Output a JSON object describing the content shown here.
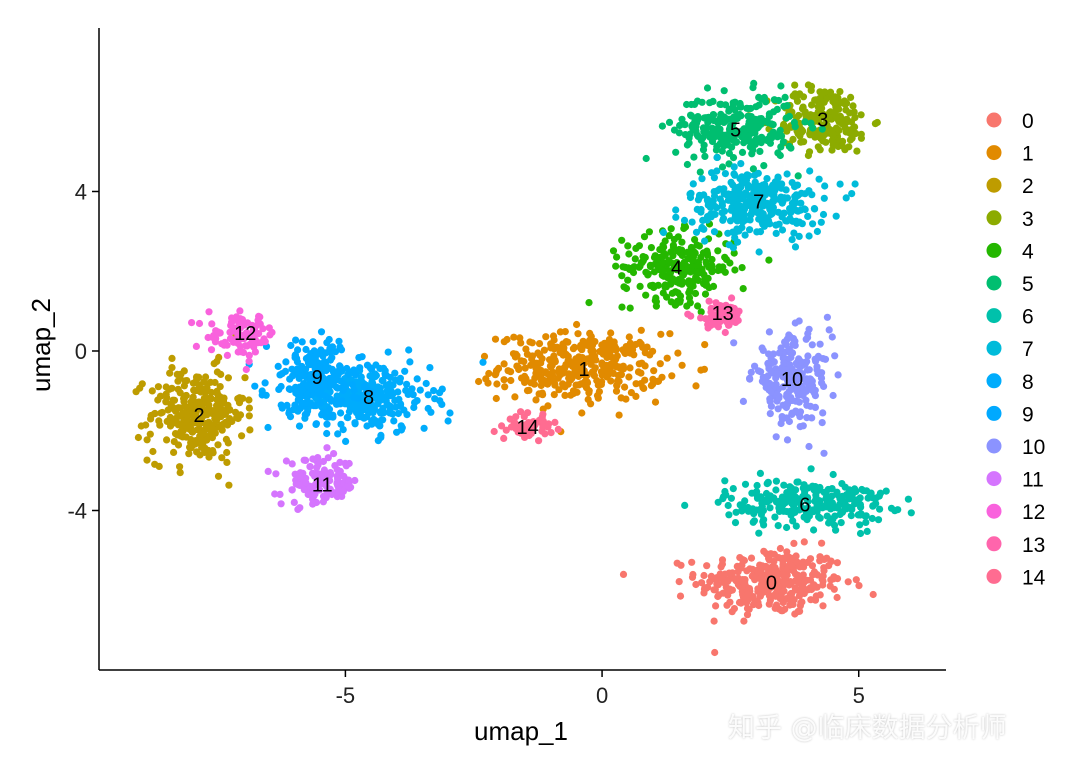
{
  "chart_data": {
    "type": "scatter",
    "title": "",
    "xlabel": "umap_1",
    "ylabel": "umap_2",
    "xlim": [
      -9.8,
      6.7
    ],
    "ylim": [
      -8.0,
      8.1
    ],
    "x_ticks": [
      -5,
      0,
      5
    ],
    "y_ticks": [
      -4,
      0,
      4
    ],
    "x_tick_labels": [
      "-5",
      "0",
      "5"
    ],
    "y_tick_labels": [
      "-4",
      "0",
      "4"
    ],
    "grid": false,
    "legend_position": "right",
    "clusters": [
      {
        "name": "0",
        "label": "0",
        "color": "#F8766D",
        "center": [
          3.3,
          -5.8
        ],
        "spread": [
          1.7,
          1.0
        ]
      },
      {
        "name": "1",
        "label": "1",
        "color": "#E18A00",
        "center": [
          -0.4,
          -0.4
        ],
        "spread": [
          1.9,
          1.0
        ]
      },
      {
        "name": "2",
        "label": "2",
        "color": "#BE9C00",
        "center": [
          -7.9,
          -1.6
        ],
        "spread": [
          1.1,
          1.4
        ]
      },
      {
        "name": "3",
        "label": "3",
        "color": "#8CAB00",
        "center": [
          4.3,
          5.8
        ],
        "spread": [
          1.1,
          1.0
        ]
      },
      {
        "name": "4",
        "label": "4",
        "color": "#24B700",
        "center": [
          1.5,
          2.1
        ],
        "spread": [
          1.3,
          1.0
        ]
      },
      {
        "name": "5",
        "label": "5",
        "color": "#00BE70",
        "center": [
          2.6,
          5.6
        ],
        "spread": [
          1.4,
          1.0
        ]
      },
      {
        "name": "6",
        "label": "6",
        "color": "#00C1AB",
        "center": [
          4.0,
          -3.8
        ],
        "spread": [
          1.9,
          0.7
        ]
      },
      {
        "name": "7",
        "label": "7",
        "color": "#00BBDA",
        "center": [
          3.0,
          3.7
        ],
        "spread": [
          1.6,
          1.0
        ]
      },
      {
        "name": "8",
        "label": "8",
        "color": "#00ACFC",
        "center": [
          -4.6,
          -1.2
        ],
        "spread": [
          1.5,
          1.0
        ]
      },
      {
        "name": "9",
        "label": "9",
        "color": "#00A9FF",
        "center": [
          -5.6,
          -0.7
        ],
        "spread": [
          1.1,
          1.1
        ]
      },
      {
        "name": "10",
        "label": "10",
        "color": "#8B93FF",
        "center": [
          3.7,
          -0.7
        ],
        "spread": [
          0.9,
          1.3
        ]
      },
      {
        "name": "11",
        "label": "11",
        "color": "#D575FE",
        "center": [
          -5.5,
          -3.3
        ],
        "spread": [
          0.9,
          0.7
        ]
      },
      {
        "name": "12",
        "label": "12",
        "color": "#F962DD",
        "center": [
          -7.0,
          0.4
        ],
        "spread": [
          0.8,
          0.6
        ]
      },
      {
        "name": "13",
        "label": "13",
        "color": "#FF65AC",
        "center": [
          2.3,
          0.9
        ],
        "spread": [
          0.6,
          0.4
        ]
      },
      {
        "name": "14",
        "label": "14",
        "color": "#FF6C91",
        "center": [
          -1.4,
          -1.9
        ],
        "spread": [
          0.5,
          0.3
        ]
      }
    ]
  },
  "label_positions": [
    {
      "text": "0",
      "x": 3.3,
      "y": -5.8
    },
    {
      "text": "1",
      "x": -0.35,
      "y": -0.45
    },
    {
      "text": "2",
      "x": -7.85,
      "y": -1.6
    },
    {
      "text": "3",
      "x": 4.3,
      "y": 5.8
    },
    {
      "text": "4",
      "x": 1.45,
      "y": 2.1
    },
    {
      "text": "5",
      "x": 2.6,
      "y": 5.55
    },
    {
      "text": "6",
      "x": 3.95,
      "y": -3.85
    },
    {
      "text": "7",
      "x": 3.05,
      "y": 3.75
    },
    {
      "text": "8",
      "x": -4.55,
      "y": -1.15
    },
    {
      "text": "9",
      "x": -5.55,
      "y": -0.65
    },
    {
      "text": "10",
      "x": 3.7,
      "y": -0.7
    },
    {
      "text": "11",
      "x": -5.45,
      "y": -3.35
    },
    {
      "text": "12",
      "x": -6.95,
      "y": 0.45
    },
    {
      "text": "13",
      "x": 2.35,
      "y": 0.95
    },
    {
      "text": "14",
      "x": -1.45,
      "y": -1.9
    }
  ],
  "watermark": "知乎 @临床数据分析师"
}
